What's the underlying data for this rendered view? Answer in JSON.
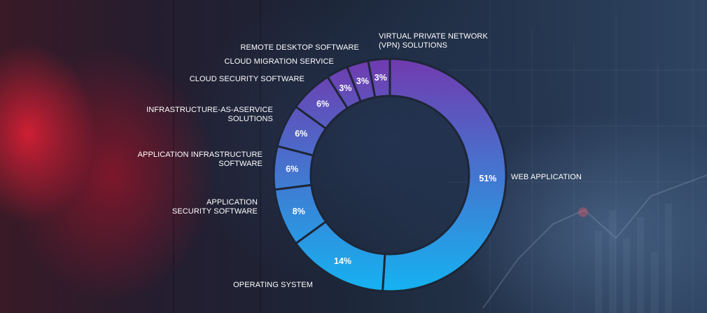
{
  "chart_data": {
    "type": "pie",
    "donut": true,
    "title": "",
    "legend": "none",
    "slices": [
      {
        "label": "WEB APPLICATION",
        "value": 51,
        "value_label": "51%"
      },
      {
        "label": "OPERATING SYSTEM",
        "value": 14,
        "value_label": "14%"
      },
      {
        "label": "APPLICATION SECURITY SOFTWARE",
        "label_lines": [
          "APPLICATION",
          "SECURITY SOFTWARE"
        ],
        "value": 8,
        "value_label": "8%"
      },
      {
        "label": "APPLICATION INFRASTRUCTURE SOFTWARE",
        "label_lines": [
          "APPLICATION INFRASTRUCTURE",
          "SOFTWARE"
        ],
        "value": 6,
        "value_label": "6%"
      },
      {
        "label": "INFRASTRUCTURE-AS-ASERVICE SOLUTIONS",
        "label_lines": [
          "INFRASTRUCTURE-AS-ASERVICE",
          "SOLUTIONS"
        ],
        "value": 6,
        "value_label": "6%"
      },
      {
        "label": "CLOUD SECURITY SOFTWARE",
        "value": 6,
        "value_label": "6%"
      },
      {
        "label": "CLOUD MIGRATION SERVICE",
        "value": 3,
        "value_label": "3%"
      },
      {
        "label": "REMOTE DESKTOP SOFTWARE",
        "value": 3,
        "value_label": "3%"
      },
      {
        "label": "VIRTUAL PRIVATE NETWORK (VPN) SOLUTIONS",
        "label_lines": [
          "VIRTUAL PRIVATE NETWORK",
          "(VPN) SOLUTIONS"
        ],
        "value": 3,
        "value_label": "3%"
      }
    ],
    "colors": {
      "top": "#7239ae",
      "bottom": "#14b4f2",
      "separator": "#1d2637"
    }
  }
}
